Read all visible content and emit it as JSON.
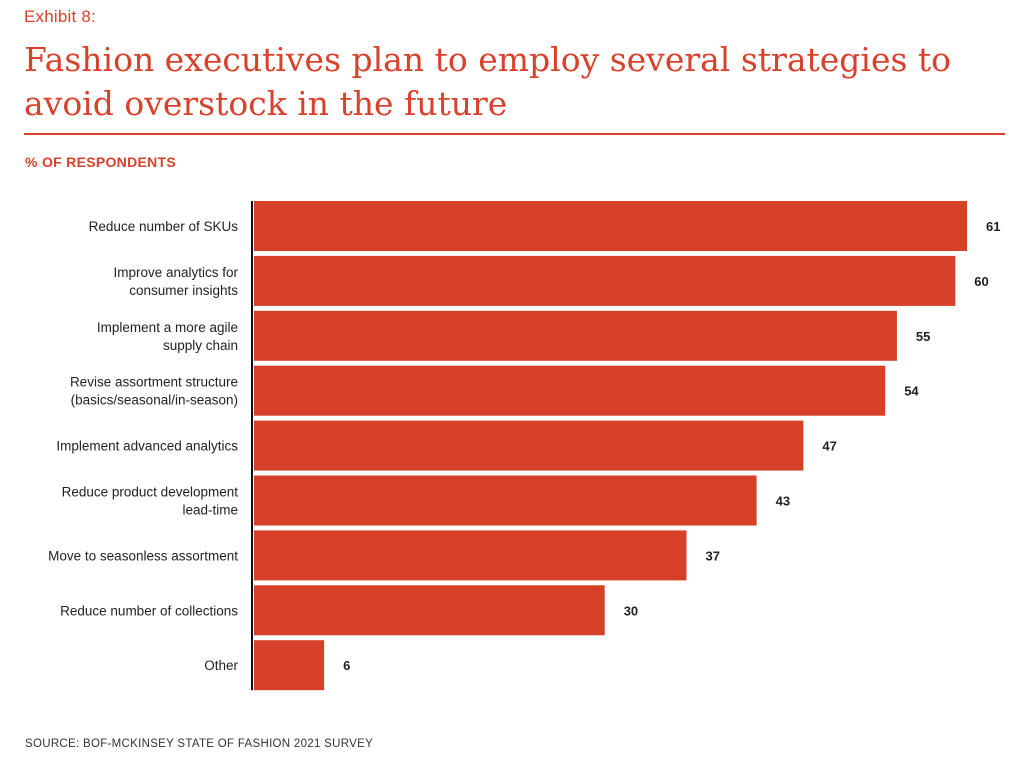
{
  "header": {
    "exhibit": "Exhibit 8:",
    "title": "Fashion executives plan to employ several strategies to avoid overstock in the future",
    "subtitle": "% OF RESPONDENTS"
  },
  "footer": {
    "source": "SOURCE: BOF-MCKINSEY STATE OF FASHION 2021 SURVEY"
  },
  "colors": {
    "accent": "#d8412b",
    "bar": "#d63f28",
    "axis": "#111111",
    "text": "#222222"
  },
  "chart_data": {
    "type": "bar",
    "orientation": "horizontal",
    "title": "Fashion executives plan to employ several strategies to avoid overstock in the future",
    "ylabel": "% OF RESPONDENTS",
    "xlim": [
      0,
      61
    ],
    "grid": false,
    "legend": "none",
    "categories": [
      [
        "Reduce number of SKUs"
      ],
      [
        "Improve analytics for",
        "consumer insights"
      ],
      [
        "Implement a more agile",
        "supply chain"
      ],
      [
        "Revise assortment structure",
        "(basics/seasonal/in-season)"
      ],
      [
        "Implement advanced analytics"
      ],
      [
        "Reduce product development",
        "lead-time"
      ],
      [
        "Move to seasonless assortment"
      ],
      [
        "Reduce number of collections"
      ],
      [
        "Other"
      ]
    ],
    "values": [
      61,
      60,
      55,
      54,
      47,
      43,
      37,
      30,
      6
    ]
  }
}
